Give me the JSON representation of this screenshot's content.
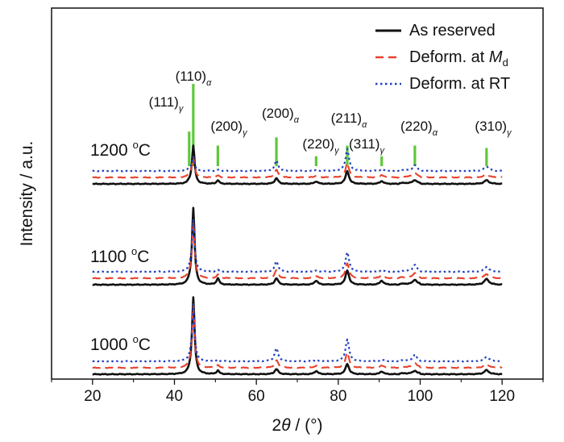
{
  "chart_data": {
    "type": "line",
    "xlabel_main": "2",
    "xlabel_symbol": "θ",
    "xlabel_unit": " / (°)",
    "ylabel": "Intensity / a.u.",
    "xlim": [
      10,
      130
    ],
    "x_ticks": [
      "20",
      "40",
      "60",
      "80",
      "100",
      "120"
    ],
    "grid": false,
    "legend_position": "top-right",
    "series": [
      {
        "name": "As reserved",
        "color": "#111111",
        "dash": "solid"
      },
      {
        "name_prefix": "Deform. at ",
        "name_italic": "M",
        "name_sub": "d",
        "color": "#e8412a",
        "dash": "dashed"
      },
      {
        "name": "Deform. at RT",
        "color": "#1f3fbf",
        "dash": "dotted"
      }
    ],
    "panels": [
      {
        "label": "1200 °C",
        "label_base": "1200 ",
        "label_deg": "o",
        "label_unit": "C",
        "peak_heights": {
          "As reserved": {
            "43.6": 0.4,
            "44.6": 9.5,
            "50.6": 0.9,
            "64.9": 1.4,
            "74.6": 0.6,
            "82.2": 3.2,
            "90.6": 0.7,
            "98.7": 0.8,
            "116.2": 0.9
          },
          "Deform. at Md": {
            "43.6": 0.7,
            "44.6": 5.0,
            "50.6": 0.5,
            "64.9": 1.9,
            "74.6": 0.4,
            "82.2": 3.6,
            "90.6": 0.6,
            "98.7": 1.0,
            "116.2": 0.8
          },
          "Deform. at RT": {
            "43.6": 0.6,
            "44.6": 3.4,
            "50.6": 0.3,
            "64.9": 2.6,
            "74.6": 0.2,
            "82.2": 5.5,
            "90.6": 0.4,
            "98.7": 1.3,
            "116.2": 1.1
          }
        }
      },
      {
        "label": "1100 °C",
        "label_base": "1100 ",
        "label_deg": "o",
        "label_unit": "C",
        "peak_heights": {
          "As reserved": {
            "43.6": 0.4,
            "44.6": 19.0,
            "50.6": 1.6,
            "64.9": 1.6,
            "74.6": 1.0,
            "82.2": 3.6,
            "90.6": 1.0,
            "98.7": 1.1,
            "116.2": 1.4
          },
          "Deform. at Md": {
            "43.6": 0.5,
            "44.6": 14.0,
            "50.6": 0.9,
            "64.9": 2.0,
            "74.6": 0.5,
            "82.2": 3.8,
            "90.6": 0.8,
            "98.7": 1.2,
            "116.2": 1.0
          },
          "Deform. at RT": {
            "43.6": 0.4,
            "44.6": 13.0,
            "50.6": 0.4,
            "64.9": 2.6,
            "74.6": 0.3,
            "82.2": 4.9,
            "90.6": 0.4,
            "98.7": 1.6,
            "116.2": 1.2
          }
        }
      },
      {
        "label": "1000 °C",
        "label_base": "1000 ",
        "label_deg": "o",
        "label_unit": "C",
        "peak_heights": {
          "As reserved": {
            "43.6": 0.3,
            "44.6": 19.0,
            "50.6": 0.9,
            "64.9": 1.3,
            "74.6": 0.8,
            "82.2": 2.6,
            "90.6": 0.7,
            "98.7": 0.7,
            "116.2": 1.0
          },
          "Deform. at Md": {
            "43.6": 0.3,
            "44.6": 15.0,
            "50.6": 0.6,
            "64.9": 1.9,
            "74.6": 0.5,
            "82.2": 3.9,
            "90.6": 0.6,
            "98.7": 1.0,
            "116.2": 0.9
          },
          "Deform. at RT": {
            "43.6": 0.3,
            "44.6": 14.0,
            "50.6": 0.3,
            "64.9": 3.3,
            "74.6": 0.3,
            "82.2": 5.5,
            "90.6": 0.4,
            "98.7": 1.5,
            "116.2": 1.1
          }
        }
      }
    ],
    "reference_peaks": [
      {
        "x": 43.6,
        "label": "(111)",
        "phase": "γ",
        "rel_height": 0.42
      },
      {
        "x": 44.6,
        "label": "(110)",
        "phase": "α",
        "rel_height": 1.0
      },
      {
        "x": 50.6,
        "label": "(200)",
        "phase": "γ",
        "rel_height": 0.25
      },
      {
        "x": 64.9,
        "label": "(200)",
        "phase": "α",
        "rel_height": 0.35
      },
      {
        "x": 74.6,
        "label": "(220)",
        "phase": "γ",
        "rel_height": 0.12
      },
      {
        "x": 82.2,
        "label": "(211)",
        "phase": "α",
        "rel_height": 0.25
      },
      {
        "x": 90.6,
        "label": "(311)",
        "phase": "γ",
        "rel_height": 0.12
      },
      {
        "x": 98.7,
        "label": "(220)",
        "phase": "α",
        "rel_height": 0.25
      },
      {
        "x": 116.2,
        "label": "(310)",
        "phase": "γ",
        "rel_height": 0.22
      }
    ],
    "reference_color": "#5ec83a"
  }
}
